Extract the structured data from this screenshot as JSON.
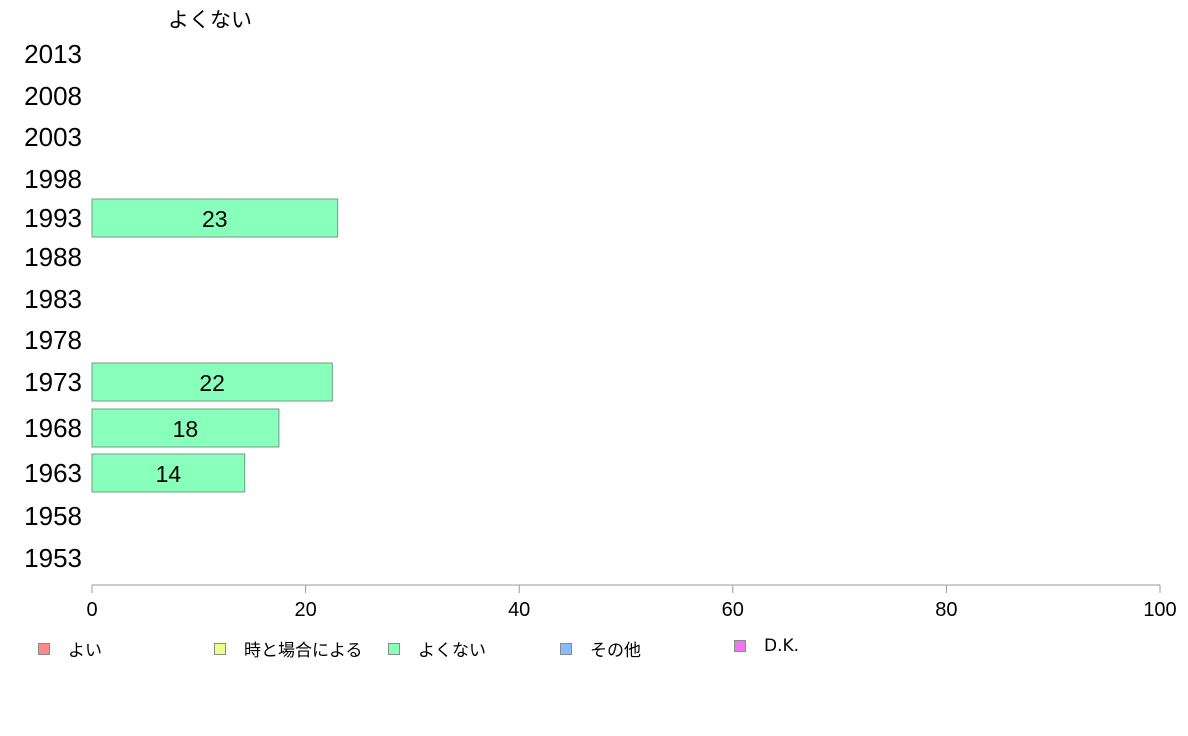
{
  "chart_data": {
    "type": "bar",
    "orientation": "horizontal",
    "stacked": true,
    "title": "よくない",
    "categories": [
      "2013",
      "2008",
      "2003",
      "1998",
      "1993",
      "1988",
      "1983",
      "1978",
      "1973",
      "1968",
      "1963",
      "1958",
      "1953"
    ],
    "series": [
      {
        "name": "よくない",
        "color": "#88ffbb",
        "values": [
          null,
          null,
          null,
          null,
          23,
          null,
          null,
          null,
          22.5,
          17.5,
          14.3,
          null,
          null
        ],
        "labels": [
          "",
          "",
          "",
          "",
          "23",
          "",
          "",
          "",
          "22",
          "18",
          "14",
          "",
          ""
        ]
      }
    ],
    "xlim": [
      0,
      100
    ],
    "xticks": [
      "0",
      "20",
      "40",
      "60",
      "80",
      "100"
    ],
    "grid": false,
    "legend_position": "bottom"
  },
  "legend": [
    {
      "label": "よい",
      "color": "#ff8888"
    },
    {
      "label": "時と場合による",
      "color": "#eeff88"
    },
    {
      "label": "よくない",
      "color": "#88ffbb"
    },
    {
      "label": "その他",
      "color": "#88bbff"
    },
    {
      "label": "D.K.",
      "color": "#ee77ee"
    }
  ]
}
